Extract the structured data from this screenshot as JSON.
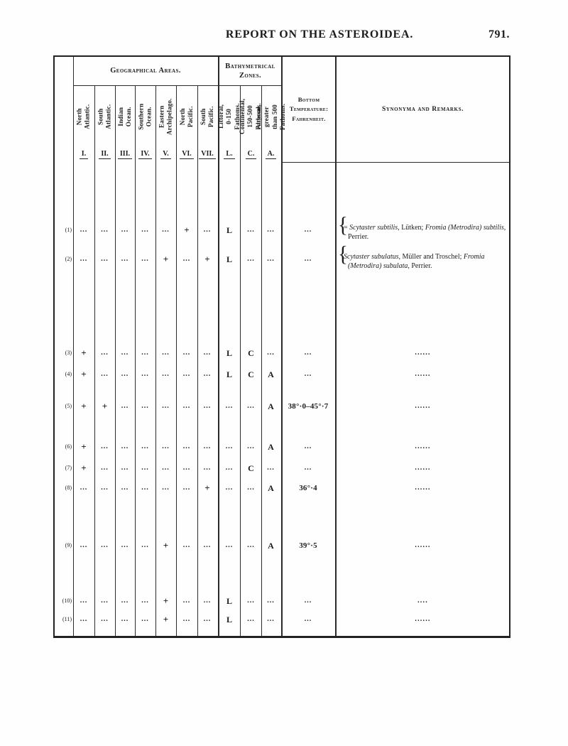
{
  "page": {
    "title": "REPORT ON THE ASTEROIDEA.",
    "page_number": "791."
  },
  "table": {
    "group_headers": {
      "geographical": "Geographical Areas.",
      "bathymetrical": "Bathymetrical Zones."
    },
    "geo_columns": [
      {
        "numeral": "I.",
        "label": "North Atlantic."
      },
      {
        "numeral": "II.",
        "label": "South Atlantic."
      },
      {
        "numeral": "III.",
        "label": "Indian Ocean."
      },
      {
        "numeral": "IV.",
        "label": "Southern Ocean."
      },
      {
        "numeral": "V.",
        "label": "Eastern\nArchipelago."
      },
      {
        "numeral": "VI.",
        "label": "North Pacific."
      },
      {
        "numeral": "VII.",
        "label": "South Pacific."
      }
    ],
    "zone_columns": [
      {
        "numeral": "L.",
        "label": "Littoral,\n0-150 Fathoms."
      },
      {
        "numeral": "C.",
        "label": "Continental,\n150-500 Fathoms."
      },
      {
        "numeral": "A.",
        "label": "Abyssal, greater\nthan 500 Fathoms."
      }
    ],
    "temp_header": "Bottom\nTemperature:\nFahrenheit.",
    "remarks_header": "Synonyma and Remarks.",
    "rows": [
      {
        "num": "(1)",
        "cells": [
          "...",
          "...",
          "...",
          "...",
          "...",
          "+",
          "...",
          "L",
          "...",
          "..."
        ],
        "temp": "...",
        "remarks": {
          "brace": true,
          "segments": [
            {
              "t": "= "
            },
            {
              "t": "Scytaster subtilis",
              "i": true
            },
            {
              "t": ", Lütken; "
            },
            {
              "t": "Fromia (Metrodira) subtilis",
              "i": true
            },
            {
              "t": ", Perrier."
            }
          ]
        }
      },
      {
        "num": "(2)",
        "cells": [
          "...",
          "...",
          "...",
          "...",
          "+",
          "...",
          "+",
          "L",
          "...",
          "..."
        ],
        "temp": "...",
        "remarks": {
          "brace": true,
          "segments": [
            {
              "t": "Scytaster subulatus",
              "i": true
            },
            {
              "t": ", Müller and Troschel; "
            },
            {
              "t": "Fromia (Metrodira) subulata",
              "i": true
            },
            {
              "t": ", Perrier."
            }
          ]
        }
      },
      {
        "num": "(3)",
        "cells": [
          "+",
          "...",
          "...",
          "...",
          "...",
          "...",
          "...",
          "L",
          "C",
          "..."
        ],
        "temp": "...",
        "remarks": {
          "dots": "......"
        }
      },
      {
        "num": "(4)",
        "cells": [
          "+",
          "...",
          "...",
          "...",
          "...",
          "...",
          "...",
          "L",
          "C",
          "A"
        ],
        "temp": "...",
        "remarks": {
          "dots": "......"
        }
      },
      {
        "num": "(5)",
        "cells": [
          "+",
          "+",
          "...",
          "...",
          "...",
          "...",
          "...",
          "...",
          "...",
          "A"
        ],
        "temp": "38°·0–45°·7",
        "remarks": {
          "dots": "......"
        }
      },
      {
        "num": "(6)",
        "cells": [
          "+",
          "...",
          "...",
          "...",
          "...",
          "...",
          "...",
          "...",
          "...",
          "A"
        ],
        "temp": "...",
        "remarks": {
          "dots": "......"
        }
      },
      {
        "num": "(7)",
        "cells": [
          "+",
          "...",
          "...",
          "...",
          "...",
          "...",
          "...",
          "...",
          "C",
          "..."
        ],
        "temp": "...",
        "remarks": {
          "dots": "......"
        }
      },
      {
        "num": "(8)",
        "cells": [
          "...",
          "...",
          "...",
          "...",
          "...",
          "...",
          "+",
          "...",
          "...",
          "A"
        ],
        "temp": "36°·4",
        "remarks": {
          "dots": "......"
        }
      },
      {
        "num": "(9)",
        "cells": [
          "...",
          "...",
          "...",
          "...",
          "+",
          "...",
          "...",
          "...",
          "...",
          "A"
        ],
        "temp": "39°·5",
        "remarks": {
          "dots": "......"
        }
      },
      {
        "num": "(10)",
        "cells": [
          "...",
          "...",
          "...",
          "...",
          "+",
          "...",
          "...",
          "L",
          "...",
          "..."
        ],
        "temp": "...",
        "remarks": {
          "dots": "...."
        }
      },
      {
        "num": "(11)",
        "cells": [
          "...",
          "...",
          "...",
          "...",
          "+",
          "...",
          "...",
          "L",
          "...",
          "..."
        ],
        "temp": "...",
        "remarks": {
          "dots": "......"
        }
      }
    ]
  }
}
